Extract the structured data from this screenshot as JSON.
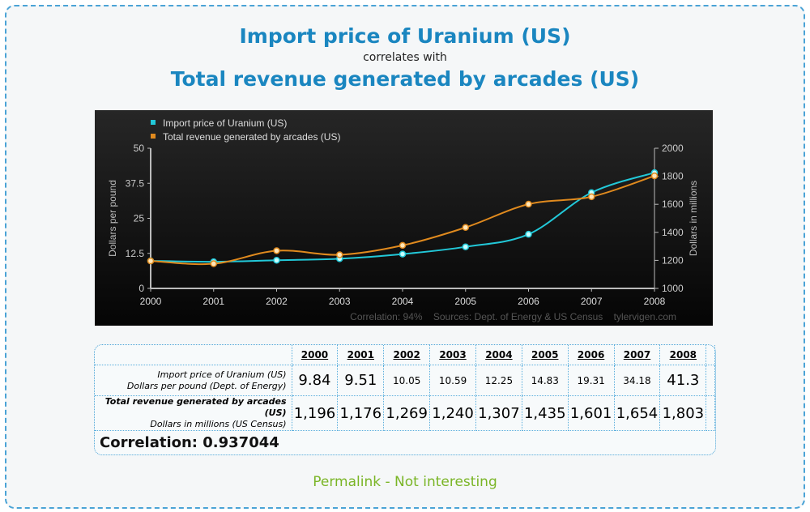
{
  "header": {
    "title1": "Import price of Uranium (US)",
    "connector": "correlates with",
    "title2": "Total revenue generated by arcades (US)"
  },
  "chart_data": {
    "type": "line",
    "x": [
      2000,
      2001,
      2002,
      2003,
      2004,
      2005,
      2006,
      2007,
      2008
    ],
    "series": [
      {
        "name": "Import price of Uranium (US)",
        "axis": "left",
        "color": "#22c8d8",
        "values": [
          9.84,
          9.51,
          10.05,
          10.59,
          12.25,
          14.83,
          19.31,
          34.18,
          41.3
        ]
      },
      {
        "name": "Total revenue generated by arcades (US)",
        "axis": "right",
        "color": "#e08a1e",
        "values": [
          1196,
          1176,
          1269,
          1240,
          1307,
          1435,
          1601,
          1654,
          1803
        ]
      }
    ],
    "ylabel_left": "Dollars per pound",
    "ylabel_right": "Dollars in millions",
    "ylim_left": [
      0,
      50
    ],
    "yticks_left": [
      "0",
      "12.5",
      "25",
      "37.5",
      "50"
    ],
    "ylim_right": [
      1000,
      2000
    ],
    "yticks_right": [
      "1000",
      "1200",
      "1400",
      "1600",
      "1800",
      "2000"
    ],
    "xticks": [
      "2000",
      "2001",
      "2002",
      "2003",
      "2004",
      "2005",
      "2006",
      "2007",
      "2008"
    ],
    "legend": "top-left",
    "grid": false,
    "footer": "Correlation: 94%    Sources: Dept. of Energy & US Census    tylervigen.com"
  },
  "table": {
    "years": [
      "2000",
      "2001",
      "2002",
      "2003",
      "2004",
      "2005",
      "2006",
      "2007",
      "2008"
    ],
    "rows": [
      {
        "label": "Import price of Uranium (US)",
        "sublabel": "Dollars per pound (Dept. of Energy)",
        "values": [
          "9.84",
          "9.51",
          "10.05",
          "10.59",
          "12.25",
          "14.83",
          "19.31",
          "34.18",
          "41.3"
        ]
      },
      {
        "label": "Total revenue generated by arcades (US)",
        "sublabel": "Dollars in millions (US Census)",
        "values": [
          "1,196",
          "1,176",
          "1,269",
          "1,240",
          "1,307",
          "1,435",
          "1,601",
          "1,654",
          "1,803"
        ]
      }
    ],
    "correlation": "Correlation: 0.937044"
  },
  "links": {
    "permalink": "Permalink",
    "sep": " - ",
    "not_interesting": "Not interesting"
  }
}
